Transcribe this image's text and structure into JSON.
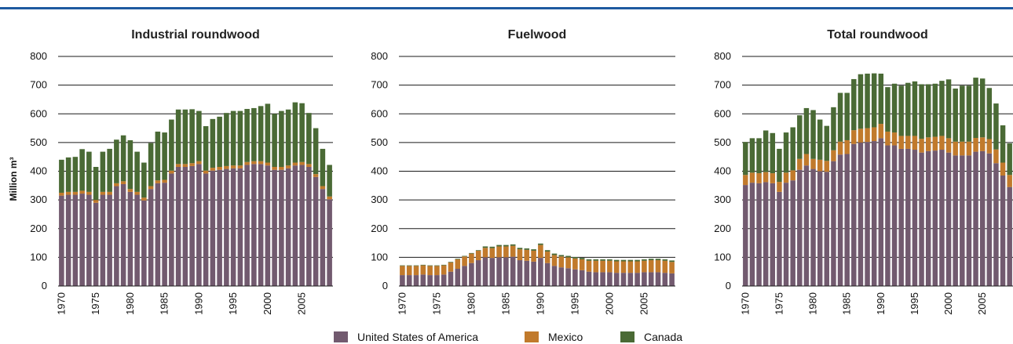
{
  "colors": {
    "usa": "#725a6f",
    "mexico": "#c17a2c",
    "canada": "#4a6a35",
    "rule": "#1e5aa0"
  },
  "chart_data": [
    {
      "type": "bar",
      "stacked": true,
      "title": "Industrial roundwood",
      "ylabel": "Million m³",
      "ylim": [
        0,
        800
      ],
      "yticks": [
        0,
        100,
        200,
        300,
        400,
        500,
        600,
        700,
        800
      ],
      "x": [
        1970,
        1971,
        1972,
        1973,
        1974,
        1975,
        1976,
        1977,
        1978,
        1979,
        1980,
        1981,
        1982,
        1983,
        1984,
        1985,
        1986,
        1987,
        1988,
        1989,
        1990,
        1991,
        1992,
        1993,
        1994,
        1995,
        1996,
        1997,
        1998,
        1999,
        2000,
        2001,
        2002,
        2003,
        2004,
        2005,
        2006,
        2007,
        2008,
        2009
      ],
      "xticks": [
        1970,
        1975,
        1980,
        1985,
        1990,
        1995,
        2000,
        2005
      ],
      "series": [
        {
          "name": "United States of America",
          "values": [
            315,
            318,
            318,
            322,
            318,
            290,
            318,
            318,
            348,
            355,
            328,
            318,
            298,
            338,
            358,
            360,
            392,
            415,
            415,
            418,
            425,
            392,
            402,
            405,
            408,
            410,
            410,
            422,
            425,
            425,
            420,
            405,
            405,
            410,
            420,
            422,
            415,
            380,
            338,
            302
          ]
        },
        {
          "name": "Mexico",
          "values": [
            10,
            10,
            10,
            10,
            10,
            10,
            10,
            10,
            10,
            10,
            10,
            10,
            10,
            10,
            10,
            10,
            10,
            10,
            10,
            10,
            10,
            10,
            10,
            10,
            10,
            10,
            10,
            10,
            10,
            10,
            10,
            10,
            10,
            10,
            10,
            10,
            10,
            10,
            10,
            10
          ]
        },
        {
          "name": "Canada",
          "values": [
            115,
            120,
            122,
            145,
            140,
            115,
            140,
            150,
            152,
            160,
            170,
            140,
            122,
            150,
            170,
            165,
            178,
            190,
            190,
            188,
            175,
            155,
            170,
            175,
            185,
            190,
            190,
            185,
            185,
            192,
            205,
            185,
            195,
            195,
            210,
            205,
            178,
            160,
            130,
            110
          ]
        }
      ]
    },
    {
      "type": "bar",
      "stacked": true,
      "title": "Fuelwood",
      "ylim": [
        0,
        800
      ],
      "yticks": [
        0,
        100,
        200,
        300,
        400,
        500,
        600,
        700,
        800
      ],
      "x": [
        1970,
        1971,
        1972,
        1973,
        1974,
        1975,
        1976,
        1977,
        1978,
        1979,
        1980,
        1981,
        1982,
        1983,
        1984,
        1985,
        1986,
        1987,
        1988,
        1989,
        1990,
        1991,
        1992,
        1993,
        1994,
        1995,
        1996,
        1997,
        1998,
        1999,
        2000,
        2001,
        2002,
        2003,
        2004,
        2005,
        2006,
        2007,
        2008,
        2009
      ],
      "xticks": [
        1970,
        1975,
        1980,
        1985,
        1990,
        1995,
        2000,
        2005
      ],
      "series": [
        {
          "name": "United States of America",
          "values": [
            38,
            38,
            38,
            40,
            38,
            38,
            40,
            50,
            60,
            70,
            80,
            90,
            100,
            98,
            100,
            100,
            102,
            90,
            88,
            85,
            98,
            80,
            70,
            65,
            62,
            58,
            55,
            50,
            48,
            48,
            48,
            46,
            46,
            46,
            46,
            48,
            48,
            48,
            46,
            44
          ]
        },
        {
          "name": "Mexico",
          "values": [
            32,
            32,
            32,
            32,
            32,
            32,
            32,
            32,
            33,
            33,
            33,
            33,
            33,
            34,
            38,
            38,
            38,
            38,
            38,
            38,
            45,
            40,
            38,
            38,
            38,
            38,
            38,
            38,
            40,
            40,
            40,
            40,
            40,
            40,
            40,
            40,
            42,
            42,
            42,
            40
          ]
        },
        {
          "name": "Canada",
          "values": [
            2,
            2,
            2,
            2,
            2,
            2,
            2,
            2,
            2,
            2,
            2,
            2,
            5,
            5,
            5,
            5,
            5,
            5,
            5,
            5,
            5,
            5,
            5,
            5,
            5,
            5,
            5,
            5,
            5,
            5,
            5,
            5,
            5,
            5,
            5,
            5,
            5,
            5,
            5,
            5
          ]
        }
      ]
    },
    {
      "type": "bar",
      "stacked": true,
      "title": "Total roundwood",
      "ylim": [
        0,
        800
      ],
      "yticks": [
        0,
        100,
        200,
        300,
        400,
        500,
        600,
        700,
        800
      ],
      "x": [
        1970,
        1971,
        1972,
        1973,
        1974,
        1975,
        1976,
        1977,
        1978,
        1979,
        1980,
        1981,
        1982,
        1983,
        1984,
        1985,
        1986,
        1987,
        1988,
        1989,
        1990,
        1991,
        1992,
        1993,
        1994,
        1995,
        1996,
        1997,
        1998,
        1999,
        2000,
        2001,
        2002,
        2003,
        2004,
        2005,
        2006,
        2007,
        2008,
        2009
      ],
      "xticks": [
        1970,
        1975,
        1980,
        1985,
        1990,
        1995,
        2000,
        2005
      ],
      "series": [
        {
          "name": "United States of America",
          "values": [
            352,
            360,
            358,
            362,
            358,
            328,
            360,
            368,
            405,
            420,
            408,
            400,
            398,
            435,
            458,
            460,
            495,
            500,
            502,
            505,
            515,
            490,
            490,
            478,
            478,
            475,
            465,
            470,
            472,
            475,
            465,
            455,
            455,
            455,
            468,
            470,
            462,
            428,
            385,
            345
          ]
        },
        {
          "name": "Mexico",
          "values": [
            35,
            35,
            35,
            35,
            35,
            35,
            35,
            35,
            38,
            40,
            35,
            40,
            38,
            38,
            45,
            48,
            48,
            48,
            48,
            48,
            50,
            48,
            45,
            45,
            45,
            48,
            48,
            48,
            48,
            48,
            50,
            48,
            48,
            48,
            48,
            48,
            50,
            48,
            45,
            42
          ]
        },
        {
          "name": "Canada",
          "values": [
            115,
            120,
            122,
            145,
            140,
            115,
            140,
            150,
            152,
            160,
            170,
            140,
            122,
            150,
            170,
            165,
            178,
            190,
            190,
            188,
            175,
            155,
            170,
            175,
            185,
            190,
            190,
            185,
            185,
            192,
            205,
            185,
            195,
            195,
            210,
            205,
            178,
            160,
            130,
            110
          ]
        }
      ]
    }
  ],
  "legend": {
    "items": [
      {
        "label": "United States of America",
        "key": "usa"
      },
      {
        "label": "Mexico",
        "key": "mexico"
      },
      {
        "label": "Canada",
        "key": "canada"
      }
    ]
  }
}
